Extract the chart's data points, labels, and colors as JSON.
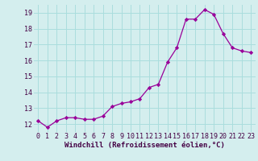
{
  "x": [
    0,
    1,
    2,
    3,
    4,
    5,
    6,
    7,
    8,
    9,
    10,
    11,
    12,
    13,
    14,
    15,
    16,
    17,
    18,
    19,
    20,
    21,
    22,
    23
  ],
  "y": [
    12.2,
    11.8,
    12.2,
    12.4,
    12.4,
    12.3,
    12.3,
    12.5,
    13.1,
    13.3,
    13.4,
    13.6,
    14.3,
    14.5,
    15.9,
    16.8,
    18.6,
    18.6,
    19.2,
    18.9,
    17.7,
    16.8,
    16.6,
    16.5
  ],
  "line_color": "#990099",
  "marker": "D",
  "marker_size": 2.2,
  "bg_color": "#d4eeee",
  "grid_color": "#aadddd",
  "xlabel": "Windchill (Refroidissement éolien,°C)",
  "xlabel_color": "#440044",
  "xlabel_fontsize": 6.5,
  "tick_color": "#440044",
  "tick_fontsize": 6.0,
  "xlim": [
    -0.5,
    23.5
  ],
  "ylim": [
    11.5,
    19.5
  ],
  "yticks": [
    12,
    13,
    14,
    15,
    16,
    17,
    18,
    19
  ],
  "xticks": [
    0,
    1,
    2,
    3,
    4,
    5,
    6,
    7,
    8,
    9,
    10,
    11,
    12,
    13,
    14,
    15,
    16,
    17,
    18,
    19,
    20,
    21,
    22,
    23
  ]
}
